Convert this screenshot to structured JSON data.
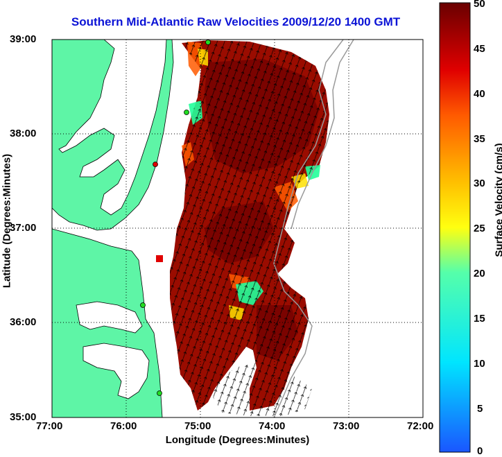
{
  "title": "Southern Mid-Atlantic Raw Velocities 2009/12/20 1400 GMT",
  "axes": {
    "xlabel": "Longitude (Degrees:Minutes)",
    "ylabel": "Latitude (Degrees:Minutes)",
    "xticks": [
      "77:00",
      "76:00",
      "75:00",
      "74:00",
      "73:00",
      "72:00"
    ],
    "yticks": [
      "39:00",
      "38:00",
      "37:00",
      "36:00",
      "35:00"
    ]
  },
  "colorbar": {
    "label": "Surface Velocity (cm/s)",
    "ticks": [
      "50",
      "45",
      "40",
      "35",
      "30",
      "25",
      "20",
      "15",
      "10",
      "5",
      "0"
    ],
    "range": [
      0,
      50
    ]
  },
  "colors": {
    "land": "#5ef5a6",
    "water": "#ffffff",
    "title": "#0b13d6",
    "station": "#22dd22"
  }
}
